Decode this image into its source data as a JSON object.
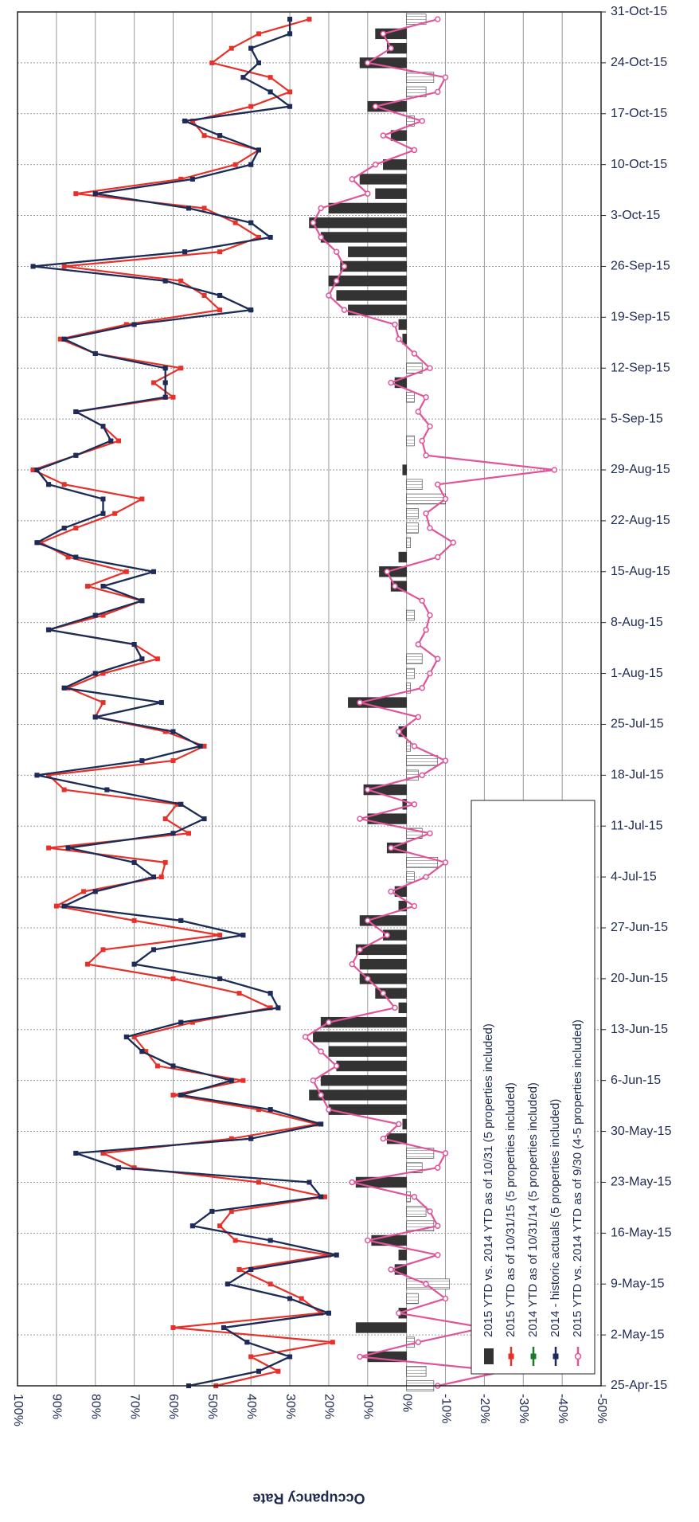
{
  "chart_data": {
    "type": "line",
    "axis_title": "Occupancy Rate",
    "x": [
      "2015-04-25",
      "2015-04-27",
      "2015-04-29",
      "2015-05-01",
      "2015-05-03",
      "2015-05-05",
      "2015-05-07",
      "2015-05-09",
      "2015-05-11",
      "2015-05-13",
      "2015-05-15",
      "2015-05-17",
      "2015-05-19",
      "2015-05-21",
      "2015-05-23",
      "2015-05-25",
      "2015-05-27",
      "2015-05-29",
      "2015-05-31",
      "2015-06-02",
      "2015-06-04",
      "2015-06-06",
      "2015-06-08",
      "2015-06-10",
      "2015-06-12",
      "2015-06-14",
      "2015-06-16",
      "2015-06-18",
      "2015-06-20",
      "2015-06-22",
      "2015-06-24",
      "2015-06-26",
      "2015-06-28",
      "2015-06-30",
      "2015-07-02",
      "2015-07-04",
      "2015-07-06",
      "2015-07-08",
      "2015-07-10",
      "2015-07-12",
      "2015-07-14",
      "2015-07-16",
      "2015-07-18",
      "2015-07-20",
      "2015-07-22",
      "2015-07-24",
      "2015-07-26",
      "2015-07-28",
      "2015-07-30",
      "2015-08-01",
      "2015-08-03",
      "2015-08-05",
      "2015-08-07",
      "2015-08-09",
      "2015-08-11",
      "2015-08-13",
      "2015-08-15",
      "2015-08-17",
      "2015-08-19",
      "2015-08-21",
      "2015-08-23",
      "2015-08-25",
      "2015-08-27",
      "2015-08-29",
      "2015-08-31",
      "2015-09-02",
      "2015-09-04",
      "2015-09-06",
      "2015-09-08",
      "2015-09-10",
      "2015-09-12",
      "2015-09-14",
      "2015-09-16",
      "2015-09-18",
      "2015-09-20",
      "2015-09-22",
      "2015-09-24",
      "2015-09-26",
      "2015-09-28",
      "2015-09-30",
      "2015-10-02",
      "2015-10-04",
      "2015-10-06",
      "2015-10-08",
      "2015-10-10",
      "2015-10-12",
      "2015-10-14",
      "2015-10-16",
      "2015-10-18",
      "2015-10-20",
      "2015-10-22",
      "2015-10-24",
      "2015-10-26",
      "2015-10-28",
      "2015-10-30"
    ],
    "xlim": [
      "2015-04-25",
      "2015-10-31"
    ],
    "xticks": [
      {
        "value": "2015-04-25",
        "label": "25-Apr-15"
      },
      {
        "value": "2015-05-02",
        "label": "2-May-15"
      },
      {
        "value": "2015-05-09",
        "label": "9-May-15"
      },
      {
        "value": "2015-05-16",
        "label": "16-May-15"
      },
      {
        "value": "2015-05-23",
        "label": "23-May-15"
      },
      {
        "value": "2015-05-30",
        "label": "30-May-15"
      },
      {
        "value": "2015-06-06",
        "label": "6-Jun-15"
      },
      {
        "value": "2015-06-13",
        "label": "13-Jun-15"
      },
      {
        "value": "2015-06-20",
        "label": "20-Jun-15"
      },
      {
        "value": "2015-06-27",
        "label": "27-Jun-15"
      },
      {
        "value": "2015-07-04",
        "label": "4-Jul-15"
      },
      {
        "value": "2015-07-11",
        "label": "11-Jul-15"
      },
      {
        "value": "2015-07-18",
        "label": "18-Jul-15"
      },
      {
        "value": "2015-07-25",
        "label": "25-Jul-15"
      },
      {
        "value": "2015-08-01",
        "label": "1-Aug-15"
      },
      {
        "value": "2015-08-08",
        "label": "8-Aug-15"
      },
      {
        "value": "2015-08-15",
        "label": "15-Aug-15"
      },
      {
        "value": "2015-08-22",
        "label": "22-Aug-15"
      },
      {
        "value": "2015-08-29",
        "label": "29-Aug-15"
      },
      {
        "value": "2015-09-05",
        "label": "5-Sep-15"
      },
      {
        "value": "2015-09-12",
        "label": "12-Sep-15"
      },
      {
        "value": "2015-09-19",
        "label": "19-Sep-15"
      },
      {
        "value": "2015-09-26",
        "label": "26-Sep-15"
      },
      {
        "value": "2015-10-03",
        "label": "3-Oct-15"
      },
      {
        "value": "2015-10-10",
        "label": "10-Oct-15"
      },
      {
        "value": "2015-10-17",
        "label": "17-Oct-15"
      },
      {
        "value": "2015-10-24",
        "label": "24-Oct-15"
      },
      {
        "value": "2015-10-31",
        "label": "31-Oct-15"
      }
    ],
    "ylim": [
      100,
      -50
    ],
    "yticks": [
      {
        "value": 100,
        "label": "100%"
      },
      {
        "value": 90,
        "label": "90%"
      },
      {
        "value": 80,
        "label": "80%"
      },
      {
        "value": 70,
        "label": "70%"
      },
      {
        "value": 60,
        "label": "60%"
      },
      {
        "value": 50,
        "label": "50%"
      },
      {
        "value": 40,
        "label": "40%"
      },
      {
        "value": 30,
        "label": "30%"
      },
      {
        "value": 20,
        "label": "20%"
      },
      {
        "value": 10,
        "label": "10%"
      },
      {
        "value": 0,
        "label": "0%"
      },
      {
        "value": -10,
        "label": "-10%"
      },
      {
        "value": -20,
        "label": "-20%"
      },
      {
        "value": -30,
        "label": "-30%"
      },
      {
        "value": -40,
        "label": "-40%"
      },
      {
        "value": -50,
        "label": "-50%"
      }
    ],
    "grid": true,
    "series": [
      {
        "name": "2015 YTD vs. 2014 YTD as of 10/31 (5 properties included)",
        "type": "bar",
        "color": "#333333",
        "values": [
          -7,
          -5,
          10,
          -2,
          13,
          2,
          -3,
          -11,
          3,
          2,
          9,
          -7,
          -5,
          -1,
          13,
          -4,
          -7,
          5,
          1,
          20,
          25,
          22,
          18,
          20,
          24,
          22,
          2,
          8,
          12,
          12,
          13,
          6,
          12,
          2,
          3,
          -2,
          -8,
          5,
          -4,
          10,
          1,
          11,
          -3,
          -8,
          -1,
          2,
          0,
          15,
          -1,
          -2,
          -4,
          0,
          0,
          -2,
          0,
          4,
          7,
          2,
          -1,
          -3,
          -3,
          -10,
          -4,
          1,
          0,
          -2,
          0,
          0,
          -2,
          3,
          -4,
          0,
          1,
          2,
          15,
          18,
          20,
          17,
          15,
          22,
          25,
          20,
          8,
          12,
          6,
          0,
          4,
          -2,
          10,
          -5,
          -7,
          12,
          5,
          8,
          -5
        ]
      },
      {
        "name": "2015 YTD as of 10/31/15 (5 properties included)",
        "type": "line",
        "marker": "square",
        "color": "#e8302a",
        "values": [
          49,
          33,
          40,
          19,
          60,
          22,
          27,
          35,
          43,
          20,
          44,
          48,
          45,
          21,
          38,
          70,
          78,
          45,
          23,
          38,
          60,
          42,
          64,
          67,
          70,
          55,
          35,
          43,
          60,
          82,
          78,
          48,
          70,
          90,
          83,
          63,
          62,
          92,
          56,
          62,
          59,
          88,
          92,
          60,
          52,
          62,
          80,
          78,
          87,
          78,
          64,
          70,
          92,
          78,
          68,
          82,
          72,
          87,
          94,
          85,
          75,
          68,
          88,
          96,
          85,
          74,
          78,
          85,
          60,
          65,
          58,
          80,
          89,
          72,
          48,
          52,
          58,
          88,
          48,
          38,
          44,
          52,
          85,
          58,
          44,
          38,
          52,
          55,
          40,
          30,
          35,
          50,
          45,
          38,
          25
        ]
      },
      {
        "name": "2014 YTD as of 10/31/14 (5 properties included)",
        "type": "line",
        "marker": "square",
        "color": "#1a7a2a",
        "values": [
          56,
          38,
          30,
          41,
          47,
          20,
          30,
          46,
          40,
          18,
          35,
          55,
          50,
          22,
          25,
          74,
          85,
          40,
          22,
          35,
          58,
          45,
          60,
          68,
          72,
          58,
          33,
          35,
          48,
          70,
          65,
          42,
          58,
          88,
          80,
          65,
          70,
          87,
          60,
          52,
          58,
          77,
          95,
          68,
          53,
          60,
          80,
          63,
          88,
          80,
          68,
          70,
          92,
          80,
          68,
          78,
          65,
          85,
          95,
          88,
          78,
          78,
          92,
          95,
          85,
          76,
          78,
          85,
          62,
          62,
          62,
          80,
          88,
          70,
          40,
          48,
          62,
          96,
          57,
          35,
          40,
          56,
          80,
          55,
          40,
          38,
          48,
          57,
          30,
          35,
          42,
          38,
          40,
          30,
          30
        ]
      },
      {
        "name": "2014 - historic actuals (5 properties included)",
        "type": "line",
        "marker": "square",
        "color": "#1f2a5a",
        "values": [
          56,
          38,
          30,
          41,
          47,
          20,
          30,
          46,
          40,
          18,
          35,
          55,
          50,
          22,
          25,
          74,
          85,
          40,
          22,
          35,
          58,
          45,
          60,
          68,
          72,
          58,
          33,
          35,
          48,
          70,
          65,
          42,
          58,
          88,
          80,
          65,
          70,
          87,
          60,
          52,
          58,
          77,
          95,
          68,
          53,
          60,
          80,
          63,
          88,
          80,
          68,
          70,
          92,
          80,
          68,
          78,
          65,
          85,
          95,
          88,
          78,
          78,
          92,
          95,
          85,
          76,
          78,
          85,
          62,
          62,
          62,
          80,
          88,
          70,
          40,
          48,
          62,
          96,
          57,
          35,
          40,
          56,
          80,
          55,
          40,
          38,
          48,
          57,
          30,
          35,
          42,
          38,
          40,
          30,
          30
        ]
      },
      {
        "name": "2015 YTD vs. 2014 YTD as of 9/30 (4-5 properties included)",
        "type": "line",
        "marker": "circle",
        "color": "#e0559a",
        "values": [
          -8,
          -25,
          12,
          -3,
          -20,
          2,
          -10,
          -5,
          4,
          -8,
          10,
          -8,
          -6,
          -2,
          14,
          -8,
          -10,
          6,
          2,
          20,
          22,
          24,
          18,
          22,
          26,
          20,
          3,
          6,
          10,
          14,
          12,
          5,
          10,
          -2,
          4,
          -5,
          -10,
          4,
          -6,
          12,
          -2,
          10,
          -4,
          -10,
          -2,
          2,
          -3,
          12,
          -4,
          -6,
          -8,
          -3,
          -5,
          -6,
          -4,
          3,
          5,
          -8,
          -12,
          -6,
          -5,
          -10,
          -8,
          -38,
          -5,
          -4,
          -6,
          -3,
          -5,
          4,
          -6,
          -2,
          2,
          3,
          16,
          20,
          18,
          16,
          18,
          22,
          24,
          22,
          10,
          14,
          8,
          -2,
          6,
          -4,
          8,
          -8,
          -10,
          10,
          4,
          6,
          -8
        ]
      }
    ]
  }
}
